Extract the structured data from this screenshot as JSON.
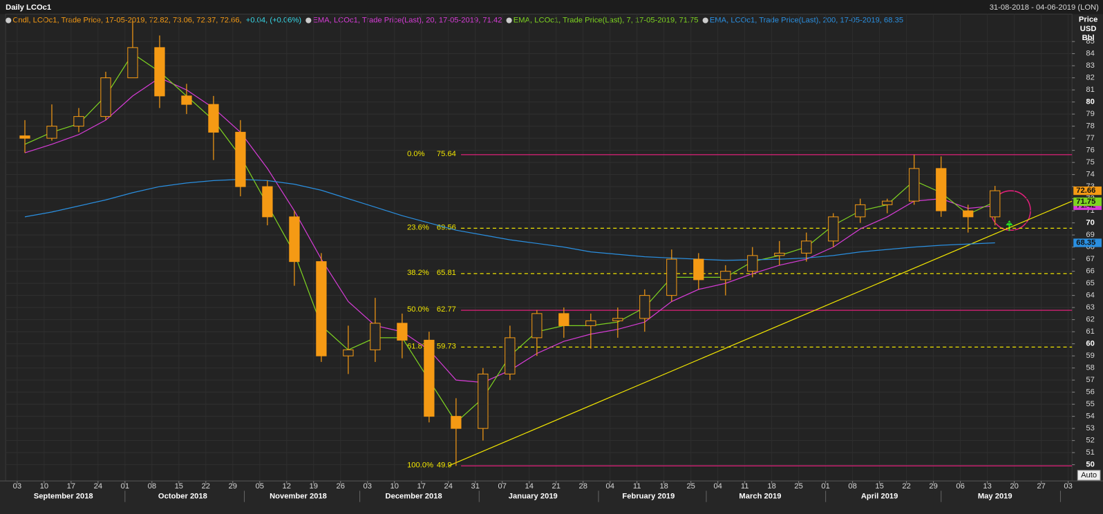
{
  "chart_data": {
    "type": "candlestick",
    "title": "Daily LCOc1",
    "range_label": "31-08-2018 - 04-06-2019 (LON)",
    "y_axis_label": [
      "Price",
      "USD",
      "Bbl"
    ],
    "auto_button": "Auto",
    "xlim": [
      "2018-08-31",
      "2019-06-04"
    ],
    "ylim": [
      48.66,
      87.27
    ],
    "yticks": [
      50,
      51,
      52,
      53,
      54,
      55,
      56,
      57,
      58,
      59,
      60,
      61,
      62,
      63,
      64,
      65,
      66,
      67,
      68,
      69,
      70,
      71,
      72,
      73,
      74,
      75,
      76,
      77,
      78,
      79,
      80,
      81,
      82,
      83,
      84,
      85
    ],
    "xticks": [
      {
        "value": "2018-09-03",
        "label": "03"
      },
      {
        "value": "2018-09-10",
        "label": "10"
      },
      {
        "value": "2018-09-17",
        "label": "17"
      },
      {
        "value": "2018-09-24",
        "label": "24"
      },
      {
        "value": "2018-10-01",
        "label": "01"
      },
      {
        "value": "2018-10-08",
        "label": "08"
      },
      {
        "value": "2018-10-15",
        "label": "15"
      },
      {
        "value": "2018-10-22",
        "label": "22"
      },
      {
        "value": "2018-10-29",
        "label": "29"
      },
      {
        "value": "2018-11-05",
        "label": "05"
      },
      {
        "value": "2018-11-12",
        "label": "12"
      },
      {
        "value": "2018-11-19",
        "label": "19"
      },
      {
        "value": "2018-11-26",
        "label": "26"
      },
      {
        "value": "2018-12-03",
        "label": "03"
      },
      {
        "value": "2018-12-10",
        "label": "10"
      },
      {
        "value": "2018-12-17",
        "label": "17"
      },
      {
        "value": "2018-12-24",
        "label": "24"
      },
      {
        "value": "2018-12-31",
        "label": "31"
      },
      {
        "value": "2019-01-07",
        "label": "07"
      },
      {
        "value": "2019-01-14",
        "label": "14"
      },
      {
        "value": "2019-01-21",
        "label": "21"
      },
      {
        "value": "2019-01-28",
        "label": "28"
      },
      {
        "value": "2019-02-04",
        "label": "04"
      },
      {
        "value": "2019-02-11",
        "label": "11"
      },
      {
        "value": "2019-02-18",
        "label": "18"
      },
      {
        "value": "2019-02-25",
        "label": "25"
      },
      {
        "value": "2019-03-04",
        "label": "04"
      },
      {
        "value": "2019-03-11",
        "label": "11"
      },
      {
        "value": "2019-03-18",
        "label": "18"
      },
      {
        "value": "2019-03-25",
        "label": "25"
      },
      {
        "value": "2019-04-01",
        "label": "01"
      },
      {
        "value": "2019-04-08",
        "label": "08"
      },
      {
        "value": "2019-04-15",
        "label": "15"
      },
      {
        "value": "2019-04-22",
        "label": "22"
      },
      {
        "value": "2019-04-29",
        "label": "29"
      },
      {
        "value": "2019-05-06",
        "label": "06"
      },
      {
        "value": "2019-05-13",
        "label": "13"
      },
      {
        "value": "2019-05-20",
        "label": "20"
      },
      {
        "value": "2019-05-27",
        "label": "27"
      },
      {
        "value": "2019-06-03",
        "label": "03"
      }
    ],
    "months": [
      {
        "value": "2018-09-15",
        "label": "September 2018"
      },
      {
        "value": "2018-10-16",
        "label": "October 2018"
      },
      {
        "value": "2018-11-15",
        "label": "November 2018"
      },
      {
        "value": "2018-12-15",
        "label": "December 2018"
      },
      {
        "value": "2019-01-15",
        "label": "January 2019"
      },
      {
        "value": "2019-02-14",
        "label": "February 2019"
      },
      {
        "value": "2019-03-15",
        "label": "March 2019"
      },
      {
        "value": "2019-04-15",
        "label": "April 2019"
      },
      {
        "value": "2019-05-15",
        "label": "May 2019"
      }
    ],
    "month_bounds": [
      "2018-10-01",
      "2018-11-01",
      "2018-12-01",
      "2019-01-01",
      "2019-02-01",
      "2019-03-01",
      "2019-04-01",
      "2019-05-01",
      "2019-06-01"
    ],
    "grid": true,
    "x": [
      "2018-09-05",
      "2018-09-12",
      "2018-09-19",
      "2018-09-26",
      "2018-10-03",
      "2018-10-10",
      "2018-10-17",
      "2018-10-24",
      "2018-10-31",
      "2018-11-07",
      "2018-11-14",
      "2018-11-21",
      "2018-11-28",
      "2018-12-05",
      "2018-12-12",
      "2018-12-19",
      "2018-12-26",
      "2019-01-02",
      "2019-01-09",
      "2019-01-16",
      "2019-01-23",
      "2019-01-30",
      "2019-02-06",
      "2019-02-13",
      "2019-02-20",
      "2019-02-27",
      "2019-03-06",
      "2019-03-13",
      "2019-03-20",
      "2019-03-27",
      "2019-04-03",
      "2019-04-10",
      "2019-04-17",
      "2019-04-24",
      "2019-05-01",
      "2019-05-08",
      "2019-05-15"
    ],
    "candles": {
      "name": "Cndl, LCOc1, Trade Price, 17-05-2019, 72.82, 73.06, 72.37, 72.66,",
      "change_label": "+0.04, (+0.06%)",
      "color": "#f59a14",
      "change_color": "#37d7e6",
      "open": [
        77.2,
        77.0,
        78.0,
        78.8,
        82.0,
        84.5,
        80.5,
        79.8,
        77.5,
        73.0,
        70.5,
        66.8,
        59.0,
        59.5,
        61.7,
        60.3,
        54.0,
        53.0,
        57.5,
        60.5,
        62.5,
        61.5,
        61.9,
        62.1,
        64.0,
        67.0,
        65.3,
        66.0,
        67.3,
        67.5,
        68.5,
        70.5,
        71.5,
        71.8,
        74.5,
        71.0,
        70.5
      ],
      "high": [
        78.5,
        79.8,
        79.5,
        82.5,
        86.7,
        85.5,
        81.5,
        80.5,
        78.5,
        73.5,
        71.0,
        67.5,
        61.5,
        63.8,
        62.5,
        61.0,
        55.5,
        58.0,
        61.5,
        62.8,
        63.0,
        62.5,
        63.0,
        64.5,
        67.8,
        67.5,
        66.5,
        68.0,
        68.5,
        69.2,
        70.8,
        72.0,
        72.0,
        75.64,
        75.5,
        71.5,
        73.06
      ],
      "low": [
        75.8,
        76.8,
        77.5,
        78.5,
        82.0,
        79.5,
        79.0,
        75.2,
        72.2,
        69.8,
        64.8,
        58.5,
        57.5,
        58.5,
        58.8,
        53.5,
        49.9,
        52.0,
        57.0,
        59.0,
        60.5,
        59.6,
        60.5,
        61.0,
        63.5,
        64.5,
        64.0,
        65.5,
        66.5,
        66.8,
        68.0,
        70.0,
        70.8,
        71.5,
        70.5,
        69.2,
        69.8
      ],
      "close": [
        77.0,
        78.0,
        78.8,
        82.0,
        84.5,
        80.5,
        79.8,
        77.5,
        73.0,
        70.5,
        66.8,
        59.0,
        59.5,
        61.7,
        60.3,
        54.0,
        53.0,
        57.5,
        60.5,
        62.5,
        61.5,
        61.9,
        62.1,
        64.0,
        67.0,
        65.3,
        66.0,
        67.3,
        67.5,
        68.5,
        70.5,
        71.5,
        71.8,
        74.5,
        71.0,
        70.5,
        72.66
      ]
    },
    "series": [
      {
        "name": "EMA, LCOc1, Trade Price(Last), 20, 17-05-2019, 71.42",
        "color": "#d63cd6",
        "values": [
          75.8,
          76.5,
          77.3,
          78.5,
          80.5,
          82.0,
          81.0,
          79.5,
          77.5,
          74.5,
          71.0,
          67.0,
          63.5,
          61.5,
          61.0,
          59.5,
          57.0,
          56.8,
          57.8,
          59.2,
          60.2,
          60.8,
          61.2,
          61.8,
          63.5,
          64.5,
          65.0,
          65.8,
          66.5,
          67.0,
          68.0,
          69.5,
          70.5,
          71.8,
          72.0,
          71.2,
          71.42
        ]
      },
      {
        "name": "EMA, LCOc1, Trade Price(Last), 7, 17-05-2019, 71.75",
        "color": "#7ed321",
        "values": [
          76.5,
          77.5,
          78.2,
          80.5,
          84.0,
          82.5,
          80.5,
          78.5,
          75.5,
          71.5,
          67.5,
          61.5,
          59.5,
          60.5,
          60.5,
          57.0,
          53.5,
          55.5,
          59.0,
          61.0,
          61.5,
          61.5,
          61.8,
          63.0,
          65.5,
          65.5,
          65.5,
          66.8,
          67.3,
          68.0,
          69.8,
          71.0,
          71.5,
          73.5,
          72.5,
          70.7,
          71.75
        ]
      },
      {
        "name": "EMA, LCOc1, Trade Price(Last), 200, 17-05-2019, 68.35",
        "color": "#2a8fe0",
        "values": [
          70.5,
          70.9,
          71.4,
          71.9,
          72.5,
          73.0,
          73.3,
          73.5,
          73.6,
          73.5,
          73.2,
          72.7,
          72.0,
          71.3,
          70.6,
          70.0,
          69.4,
          69.0,
          68.6,
          68.3,
          68.0,
          67.6,
          67.4,
          67.2,
          67.1,
          67.0,
          66.9,
          66.95,
          67.0,
          67.1,
          67.3,
          67.6,
          67.8,
          68.0,
          68.15,
          68.25,
          68.35
        ]
      }
    ],
    "fib_levels": [
      {
        "label": "0.0%",
        "value": 75.64,
        "color": "#e0207a",
        "dashed": false
      },
      {
        "label": "23.6%",
        "value": 69.56,
        "color": "#f2e600",
        "dashed": true
      },
      {
        "label": "38.2%",
        "value": 65.81,
        "color": "#f2e600",
        "dashed": true
      },
      {
        "label": "50.0%",
        "value": 62.77,
        "color": "#e0207a",
        "dashed": false
      },
      {
        "label": "61.8%",
        "value": 59.73,
        "color": "#f2e600",
        "dashed": true
      },
      {
        "label": "100.0%",
        "value": 49.9,
        "color": "#e0207a",
        "dashed": false
      }
    ],
    "trendline": {
      "color": "#f2e600",
      "x": [
        "2018-12-24",
        "2019-06-04"
      ],
      "y": [
        49.9,
        71.8
      ]
    }
  }
}
